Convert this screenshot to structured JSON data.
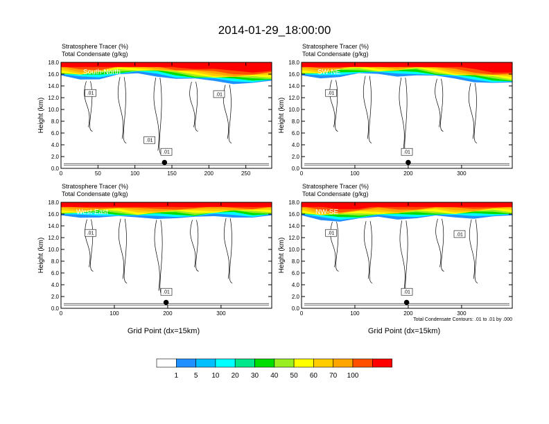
{
  "figure": {
    "title": "2014-01-29_18:00:00",
    "contour_note": "Total Condensate Contours: .01 to .01 by .000",
    "xlabel": "Grid Point (dx=15km)"
  },
  "colorbar": {
    "labels": [
      "1",
      "5",
      "10",
      "20",
      "30",
      "40",
      "50",
      "60",
      "70",
      "100"
    ],
    "colors": [
      "#ffffff",
      "#1e90ff",
      "#00bfff",
      "#00ffff",
      "#00e68a",
      "#00dd00",
      "#99ee22",
      "#ffff00",
      "#ffcc00",
      "#ffa500",
      "#ff5000",
      "#ff0000"
    ]
  },
  "chart_data": [
    {
      "type": "heatmap",
      "title_line1": "Stratosphere Tracer   (%)",
      "title_line2": "Total Condensate   (g/kg)",
      "section": "South-North",
      "ylabel": "Height (km)",
      "xlabel": "",
      "xlim": [
        0,
        285
      ],
      "ylim": [
        0,
        18
      ],
      "xticks": [
        0,
        50,
        100,
        150,
        200,
        250
      ],
      "yticks": [
        "0.0",
        "2.0",
        "4.0",
        "6.0",
        "8.0",
        "10.0",
        "12.0",
        "14.0",
        "16.0",
        "18.0"
      ],
      "marker": {
        "x": 140,
        "y": 1.0
      },
      "contour_labels": [
        ".01",
        ".01",
        ".01",
        ".01"
      ],
      "tracer_top_km": [
        16.0,
        15.6,
        15.8,
        16.3,
        16.4,
        16.2,
        15.8,
        15.5,
        15.2,
        15.0,
        15.0,
        15.1
      ]
    },
    {
      "type": "heatmap",
      "title_line1": "Stratosphere Tracer   (%)",
      "title_line2": "Total Condensate   (g/kg)",
      "section": "SW-NE",
      "ylabel": "Height (km)",
      "xlabel": "",
      "xlim": [
        0,
        395
      ],
      "ylim": [
        0,
        18
      ],
      "xticks": [
        0,
        100,
        200,
        300
      ],
      "yticks": [
        "0.0",
        "2.0",
        "4.0",
        "6.0",
        "8.0",
        "10.0",
        "12.0",
        "14.0",
        "16.0",
        "18.0"
      ],
      "marker": {
        "x": 200,
        "y": 1.0
      },
      "contour_labels": [
        ".01",
        ".01"
      ],
      "tracer_top_km": [
        16.0,
        15.8,
        16.2,
        16.5,
        16.3,
        16.2,
        16.4,
        16.0,
        15.6,
        15.3,
        15.0,
        14.8
      ]
    },
    {
      "type": "heatmap",
      "title_line1": "Stratosphere Tracer   (%)",
      "title_line2": "Total Condensate   (g/kg)",
      "section": "West-East",
      "ylabel": "Height (km)",
      "xlabel": "Grid Point (dx=15km)",
      "xlim": [
        0,
        395
      ],
      "ylim": [
        0,
        18
      ],
      "xticks": [
        0,
        100,
        200,
        300
      ],
      "yticks": [
        "0.0",
        "2.0",
        "4.0",
        "6.0",
        "8.0",
        "10.0",
        "12.0",
        "14.0",
        "16.0",
        "18.0"
      ],
      "marker": {
        "x": 197,
        "y": 1.0
      },
      "contour_labels": [
        ".01",
        ".01"
      ],
      "tracer_top_km": [
        16.0,
        15.9,
        16.1,
        16.0,
        15.7,
        15.8,
        15.9,
        15.8,
        16.0,
        16.1,
        15.9,
        16.0
      ]
    },
    {
      "type": "heatmap",
      "title_line1": "Stratosphere Tracer   (%)",
      "title_line2": "Total Condensate   (g/kg)",
      "section": "NW-SE",
      "ylabel": "Height (km)",
      "xlabel": "Grid Point (dx=15km)",
      "xlim": [
        0,
        395
      ],
      "ylim": [
        0,
        18
      ],
      "xticks": [
        0,
        100,
        200,
        300
      ],
      "yticks": [
        "0.0",
        "2.0",
        "4.0",
        "6.0",
        "8.0",
        "10.0",
        "12.0",
        "14.0",
        "16.0",
        "18.0"
      ],
      "marker": {
        "x": 197,
        "y": 1.0
      },
      "contour_labels": [
        ".01",
        ".01",
        ".01"
      ],
      "tracer_top_km": [
        16.0,
        15.5,
        15.4,
        15.6,
        15.8,
        15.7,
        15.9,
        16.0,
        15.8,
        15.9,
        16.1,
        16.0
      ]
    }
  ]
}
